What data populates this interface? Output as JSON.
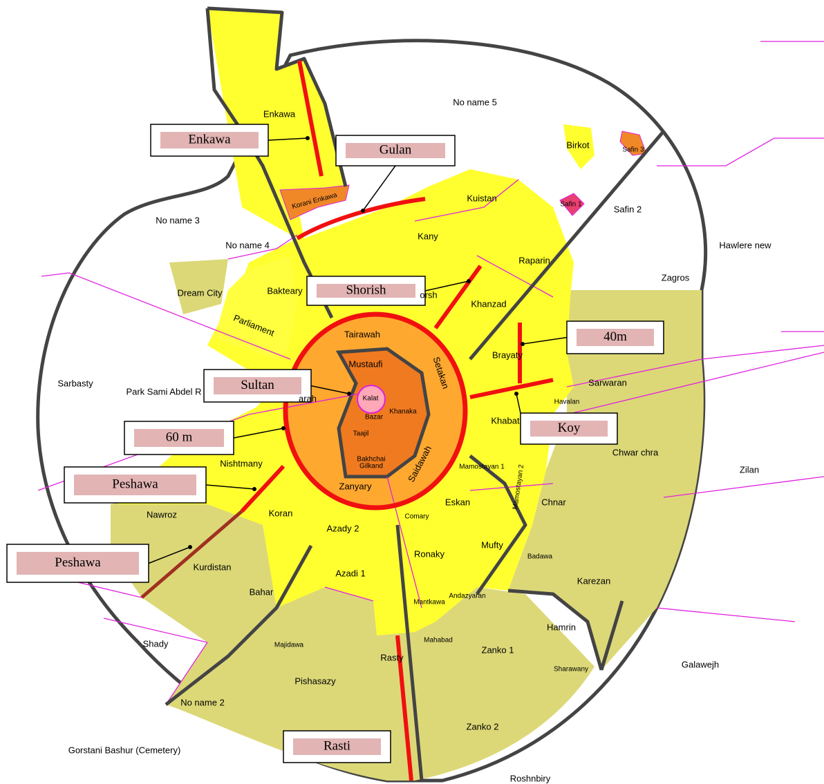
{
  "districts": [
    "Enkawa",
    "No name 5",
    "Birkot",
    "Safin 3",
    "Korani Enkawa",
    "Kuistan",
    "Safin 1",
    "Safin 2",
    "No name 3",
    "No name 4",
    "Kany",
    "Hawlere new",
    "Raparin",
    "Zagros",
    "Dream City",
    "Bakteary",
    "orsh",
    "Khanzad",
    "Tairawah",
    "Parliament",
    "Mustaufi",
    "Setakan",
    "Brayaty",
    "Sarbasty",
    "Park Sami Abdel R",
    "Sarwaran",
    "arah",
    "Kalat",
    "Havalan",
    "Khanaka",
    "Bazar",
    "Khabat",
    "Taajil",
    "Chwar chra",
    "Zilan",
    "Nishtmany",
    "Bakhchai",
    "Gilkand",
    "Saidawah",
    "Mamostayan 1",
    "Mamostayan 2",
    "Zanyary",
    "Nawroz",
    "Koran",
    "Chnar",
    "Eskan",
    "Comary",
    "Azady 2",
    "Mufty",
    "Ronaky",
    "Badawa",
    "Kurdistan",
    "Azadi 1",
    "Karezan",
    "Bahar",
    "Andazyaran",
    "Mantkawa",
    "Hamrin",
    "Shady",
    "Majidawa",
    "Mahabad",
    "Zanko 1",
    "Rasty",
    "Galawejh",
    "Sharawany",
    "Pishasazy",
    "No name 2",
    "Zanko 2",
    "Gorstani Bashur (Cemetery)",
    "Roshnbiry"
  ],
  "callouts": [
    "Enkawa",
    "Gulan",
    "Shorish",
    "40m",
    "Sultan",
    "Koy",
    "60 m",
    "Peshawa",
    "Peshawa",
    "Rasti"
  ]
}
